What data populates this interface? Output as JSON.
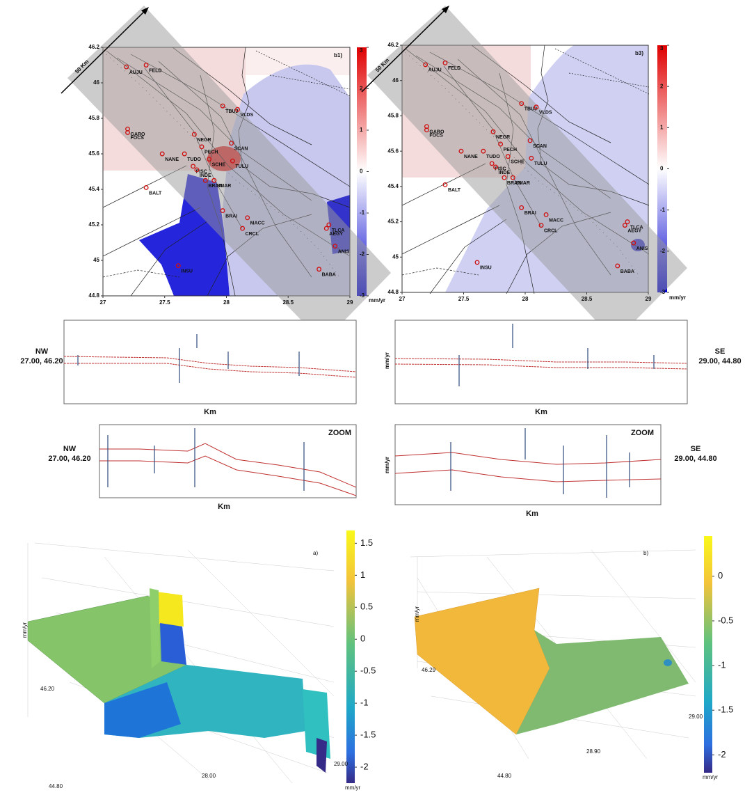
{
  "maps": [
    {
      "label": "b1)",
      "scale": "50 Km",
      "colorbar": {
        "ticks": [
          3,
          2,
          1,
          0,
          -1,
          -2,
          -3
        ],
        "unit": "mm/yr"
      }
    },
    {
      "label": "b3)",
      "scale": "50 Km",
      "colorbar": {
        "ticks": [
          3,
          2,
          1,
          0,
          -1,
          -2,
          -3
        ],
        "unit": "mm/yr"
      }
    }
  ],
  "lat_ticks": [
    46.2,
    46,
    45.8,
    45.6,
    45.4,
    45.2,
    45,
    44.8
  ],
  "lon_ticks": [
    27,
    27.5,
    28,
    28.5,
    29
  ],
  "stations": [
    {
      "name": "AUJU",
      "lon": 27.19,
      "lat": 46.09
    },
    {
      "name": "FELD",
      "lon": 27.35,
      "lat": 46.1
    },
    {
      "name": "TBUJ",
      "lon": 27.97,
      "lat": 45.87
    },
    {
      "name": "VLDS",
      "lon": 28.09,
      "lat": 45.85
    },
    {
      "name": "GARO",
      "lon": 27.2,
      "lat": 45.74
    },
    {
      "name": "FOCS",
      "lon": 27.2,
      "lat": 45.72
    },
    {
      "name": "NEGR",
      "lon": 27.74,
      "lat": 45.71
    },
    {
      "name": "SCAN",
      "lon": 28.04,
      "lat": 45.66
    },
    {
      "name": "PECH",
      "lon": 27.8,
      "lat": 45.64
    },
    {
      "name": "NANE",
      "lon": 27.48,
      "lat": 45.6
    },
    {
      "name": "TUDO",
      "lon": 27.66,
      "lat": 45.6
    },
    {
      "name": "SCHE",
      "lon": 27.86,
      "lat": 45.57
    },
    {
      "name": "TULU",
      "lon": 28.05,
      "lat": 45.56
    },
    {
      "name": "PISC",
      "lon": 27.73,
      "lat": 45.53
    },
    {
      "name": "INDE",
      "lon": 27.76,
      "lat": 45.51
    },
    {
      "name": "SMAR",
      "lon": 27.9,
      "lat": 45.45
    },
    {
      "name": "BRAN",
      "lon": 27.83,
      "lat": 45.45
    },
    {
      "name": "BALT",
      "lon": 27.35,
      "lat": 45.41
    },
    {
      "name": "BRAI",
      "lon": 27.97,
      "lat": 45.28
    },
    {
      "name": "MACC",
      "lon": 28.17,
      "lat": 45.24
    },
    {
      "name": "CRCL",
      "lon": 28.13,
      "lat": 45.18
    },
    {
      "name": "TLCA",
      "lon": 28.83,
      "lat": 45.2
    },
    {
      "name": "AEGY",
      "lon": 28.81,
      "lat": 45.18
    },
    {
      "name": "ANIS",
      "lon": 28.88,
      "lat": 45.08
    },
    {
      "name": "INSU",
      "lon": 27.61,
      "lat": 44.97
    },
    {
      "name": "BABA",
      "lon": 28.75,
      "lat": 44.95
    }
  ],
  "profiles": {
    "nw": {
      "dir": "NW",
      "coord": "27.00, 46.20"
    },
    "se": {
      "dir": "SE",
      "coord": "29.00, 44.80"
    },
    "x_label": "Km",
    "y_label": "mm/yr",
    "zoom": "ZOOM"
  },
  "surfaces": [
    {
      "label": "a)",
      "colorbar": {
        "ticks": [
          1.5,
          1,
          0.5,
          0,
          -0.5,
          -1,
          -1.5,
          -2
        ],
        "unit": "mm/yr"
      },
      "axis_texts": [
        "46.20",
        "44.80",
        "28.00",
        "29.00",
        "mm/yr"
      ]
    },
    {
      "label": "b)",
      "colorbar": {
        "ticks": [
          0,
          -0.5,
          -1,
          -1.5,
          -2
        ],
        "unit": "mm/yr"
      },
      "axis_texts": [
        "46.29",
        "44.80",
        "28.90",
        "29.00",
        "mm/yr"
      ]
    }
  ]
}
